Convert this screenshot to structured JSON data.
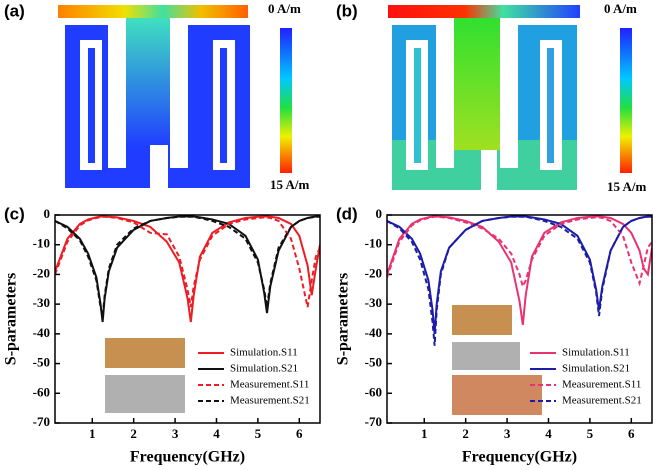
{
  "panels": [
    {
      "label": "(a)",
      "top_label": "0 A/m",
      "bottom_label": "15 A/m"
    },
    {
      "label": "(b)",
      "top_label": "0 A/m",
      "bottom_label": "15 A/m"
    }
  ],
  "chart_data": [
    {
      "type": "line",
      "panel_label": "(c)",
      "x_label": "Frequency(GHz)",
      "y_label": "S-parameters",
      "xlim": [
        0.1,
        6.5
      ],
      "ylim": [
        -70,
        0
      ],
      "xticks": [
        1,
        2,
        3,
        4,
        5,
        6
      ],
      "yticks": [
        -70,
        -60,
        -50,
        -40,
        -30,
        -20,
        -10,
        0
      ],
      "legend": "lower right",
      "x": [
        0.1,
        0.4,
        0.7,
        0.9,
        1.1,
        1.2,
        1.25,
        1.3,
        1.4,
        1.6,
        2.0,
        2.4,
        2.8,
        3.1,
        3.3,
        3.38,
        3.45,
        3.6,
        3.9,
        4.3,
        4.7,
        5.0,
        5.15,
        5.22,
        5.3,
        5.5,
        5.8,
        6.0,
        6.2,
        6.3,
        6.4,
        6.5
      ],
      "series": [
        {
          "name": "Simulation.S11",
          "color": "#ee1c25",
          "style": "solid",
          "values": [
            -19,
            -8,
            -3,
            -1.5,
            -0.8,
            -0.5,
            -0.5,
            -0.5,
            -0.6,
            -0.8,
            -2,
            -4,
            -9,
            -16,
            -28,
            -36,
            -27,
            -14,
            -6,
            -2.5,
            -1,
            -0.6,
            -0.5,
            -0.5,
            -0.6,
            -1,
            -3,
            -7,
            -17,
            -27,
            -18,
            -10
          ]
        },
        {
          "name": "Simulation.S21",
          "color": "#111111",
          "style": "solid",
          "values": [
            -2,
            -4,
            -8,
            -13,
            -21,
            -30,
            -36,
            -28,
            -19,
            -11,
            -5,
            -2,
            -1,
            -0.5,
            -0.5,
            -0.5,
            -0.5,
            -0.8,
            -1.5,
            -3,
            -7,
            -15,
            -26,
            -33,
            -24,
            -12,
            -4,
            -2,
            -1,
            -0.7,
            -0.5,
            -0.5
          ]
        },
        {
          "name": "Measurement.S11",
          "color": "#ee1c25",
          "style": "dashed",
          "values": [
            -20,
            -9,
            -3.5,
            -1.8,
            -1,
            -0.7,
            -0.6,
            -0.6,
            -0.7,
            -1,
            -2.5,
            -6,
            -6.5,
            -14,
            -25,
            -31,
            -24,
            -15,
            -7,
            -3,
            -1.5,
            -1,
            -0.8,
            -0.8,
            -1,
            -2,
            -8,
            -18,
            -31,
            -22,
            -14,
            -11
          ]
        },
        {
          "name": "Measurement.S21",
          "color": "#111111",
          "style": "dashed",
          "values": [
            -2,
            -4.5,
            -8.5,
            -14,
            -22,
            -31,
            -34,
            -27,
            -18,
            -10,
            -4.5,
            -2,
            -1,
            -0.6,
            -0.6,
            -0.6,
            -0.6,
            -1,
            -2,
            -4,
            -8,
            -16,
            -25,
            -31,
            -23,
            -11,
            -4,
            -2,
            -1,
            -0.8,
            -0.6,
            -0.6
          ]
        }
      ]
    },
    {
      "type": "line",
      "panel_label": "(d)",
      "x_label": "Frequency(GHz)",
      "y_label": "S-parameters",
      "xlim": [
        0.1,
        6.5
      ],
      "ylim": [
        -70,
        0
      ],
      "xticks": [
        1,
        2,
        3,
        4,
        5,
        6
      ],
      "yticks": [
        -70,
        -60,
        -50,
        -40,
        -30,
        -20,
        -10,
        0
      ],
      "legend": "lower right",
      "x": [
        0.1,
        0.4,
        0.7,
        0.9,
        1.1,
        1.2,
        1.25,
        1.3,
        1.4,
        1.6,
        2.0,
        2.4,
        2.8,
        3.1,
        3.3,
        3.38,
        3.45,
        3.6,
        3.9,
        4.3,
        4.7,
        5.0,
        5.15,
        5.22,
        5.3,
        5.5,
        5.8,
        6.0,
        6.2,
        6.3,
        6.4,
        6.5
      ],
      "series": [
        {
          "name": "Simulation.S11",
          "color": "#e8336f",
          "style": "solid",
          "values": [
            -20,
            -8,
            -3,
            -1.5,
            -0.8,
            -0.5,
            -0.5,
            -0.5,
            -0.6,
            -0.8,
            -2,
            -4,
            -9,
            -16,
            -29,
            -37,
            -27,
            -14,
            -6,
            -2.5,
            -1,
            -0.6,
            -0.5,
            -0.5,
            -0.6,
            -1,
            -3,
            -6,
            -12,
            -18,
            -20,
            -11
          ]
        },
        {
          "name": "Simulation.S21",
          "color": "#1c1ca8",
          "style": "solid",
          "values": [
            -2,
            -4,
            -8,
            -13,
            -22,
            -32,
            -40,
            -30,
            -19,
            -11,
            -5,
            -2,
            -1,
            -0.5,
            -0.5,
            -0.5,
            -0.5,
            -0.8,
            -1.5,
            -3,
            -7,
            -15,
            -25,
            -32,
            -24,
            -12,
            -4,
            -2,
            -1,
            -0.7,
            -0.5,
            -0.5
          ]
        },
        {
          "name": "Measurement.S11",
          "color": "#e8336f",
          "style": "dashed",
          "values": [
            -21,
            -9,
            -3.5,
            -1.8,
            -1,
            -0.7,
            -0.6,
            -0.6,
            -0.7,
            -1,
            -2.5,
            -4.5,
            -8,
            -13,
            -20,
            -24,
            -22,
            -15,
            -7,
            -3,
            -1.5,
            -1,
            -0.8,
            -0.8,
            -1,
            -2,
            -7,
            -16,
            -23,
            -17,
            -11,
            -9
          ]
        },
        {
          "name": "Measurement.S21",
          "color": "#1c1ca8",
          "style": "dashed",
          "values": [
            -2,
            -4.5,
            -9,
            -15,
            -25,
            -36,
            -44,
            -32,
            -20,
            -11,
            -5,
            -2,
            -1,
            -0.6,
            -0.6,
            -0.6,
            -0.6,
            -1,
            -2,
            -4,
            -8,
            -16,
            -26,
            -34,
            -25,
            -12,
            -4,
            -2,
            -1,
            -0.8,
            -0.6,
            -0.6
          ]
        }
      ]
    }
  ]
}
